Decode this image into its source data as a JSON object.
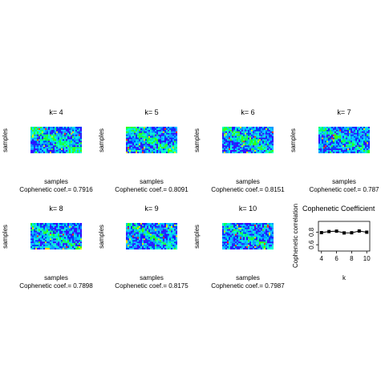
{
  "chart_data": [
    {
      "type": "heatmap",
      "k": 4,
      "title": "k= 4",
      "xlabel": "samples",
      "ylabel": "samples",
      "coef_label": "Cophenetic coef.= 0.7916",
      "cophenetic": 0.7916
    },
    {
      "type": "heatmap",
      "k": 5,
      "title": "k= 5",
      "xlabel": "samples",
      "ylabel": "samples",
      "coef_label": "Cophenetic coef.= 0.8091",
      "cophenetic": 0.8091
    },
    {
      "type": "heatmap",
      "k": 6,
      "title": "k= 6",
      "xlabel": "samples",
      "ylabel": "samples",
      "coef_label": "Cophenetic coef.= 0.8151",
      "cophenetic": 0.8151
    },
    {
      "type": "heatmap",
      "k": 7,
      "title": "k= 7",
      "xlabel": "samples",
      "ylabel": "samples",
      "coef_label": "Cophenetic coef.= 0.787",
      "cophenetic": 0.787
    },
    {
      "type": "heatmap",
      "k": 8,
      "title": "k= 8",
      "xlabel": "samples",
      "ylabel": "samples",
      "coef_label": "Cophenetic coef.= 0.7898",
      "cophenetic": 0.7898
    },
    {
      "type": "heatmap",
      "k": 9,
      "title": "k= 9",
      "xlabel": "samples",
      "ylabel": "samples",
      "coef_label": "Cophenetic coef.= 0.8175",
      "cophenetic": 0.8175
    },
    {
      "type": "heatmap",
      "k": 10,
      "title": "k= 10",
      "xlabel": "samples",
      "ylabel": "samples",
      "coef_label": "Cophenetic coef.= 0.7987",
      "cophenetic": 0.7987
    },
    {
      "type": "line",
      "title": "Cophenetic Coefficient",
      "xlabel": "k",
      "ylabel": "Cophenetic correlation",
      "x": [
        4,
        5,
        6,
        7,
        8,
        9,
        10
      ],
      "values": [
        0.7916,
        0.8091,
        0.8151,
        0.787,
        0.7898,
        0.8175,
        0.7987
      ],
      "xlim": [
        3.6,
        10.4
      ],
      "ylim": [
        0.5,
        0.97
      ],
      "xticks": [
        4,
        6,
        8,
        10
      ],
      "xtick_labels": [
        "4",
        "6",
        "8",
        "10"
      ],
      "yticks": [
        0.6,
        0.8
      ],
      "ytick_labels": [
        "0.6",
        "0.8"
      ]
    }
  ],
  "colors": {
    "heat_palette": [
      "#3300ff",
      "#0033ff",
      "#0099ff",
      "#00ccff",
      "#00ffcc",
      "#00ff66",
      "#33ff00",
      "#ccff00",
      "#ffcc00",
      "#ff3300"
    ],
    "diag_high": "#00ff33",
    "accent_hot": "#ff2200",
    "ink": "#000000"
  }
}
